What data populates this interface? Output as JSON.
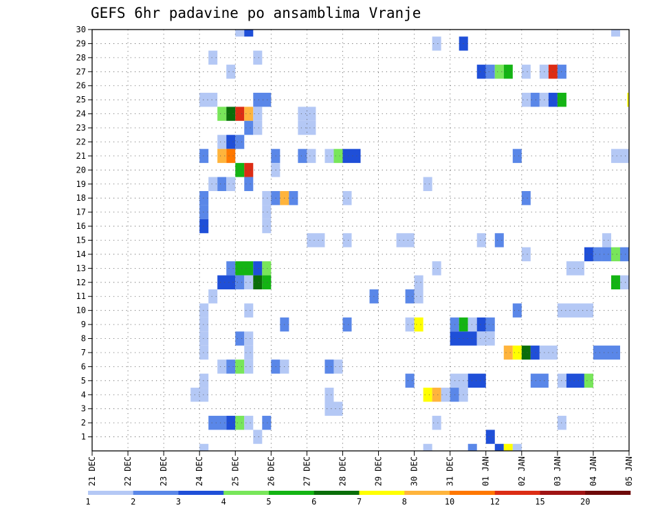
{
  "chart_data": {
    "type": "heatmap",
    "title": "GEFS 6hr padavine po ansamblima Vranje",
    "xlabel": "",
    "ylabel": "",
    "x_tick_labels": [
      "21 DEC",
      "22 DEC",
      "23 DEC",
      "24 DEC",
      "25 DEC",
      "26 DEC",
      "27 DEC",
      "28 DEC",
      "29 DEC",
      "30 DEC",
      "31 DEC",
      "01 JAN",
      "02 JAN",
      "03 JAN",
      "04 JAN",
      "05 JAN"
    ],
    "y_tick_labels": [
      "1",
      "2",
      "3",
      "4",
      "5",
      "6",
      "7",
      "8",
      "9",
      "10",
      "11",
      "12",
      "13",
      "14",
      "15",
      "16",
      "17",
      "18",
      "19",
      "20",
      "21",
      "22",
      "23",
      "24",
      "25",
      "26",
      "27",
      "28",
      "29",
      "30"
    ],
    "x_axis": {
      "units": "days from 21 DEC 00Z",
      "range": [
        0,
        15
      ],
      "step_hours": 6
    },
    "y_axis": {
      "units": "ensemble member",
      "range": [
        0,
        30
      ]
    },
    "grid": true,
    "colorbar": {
      "labels": [
        "1",
        "2",
        "3",
        "4",
        "5",
        "6",
        "7",
        "8",
        "10",
        "12",
        "15",
        "20"
      ],
      "colors": [
        "#b4c8f5",
        "#5a87e8",
        "#1f4fd8",
        "#78e65a",
        "#14b414",
        "#0a6e0a",
        "#ffff00",
        "#ffb43c",
        "#ff7800",
        "#dc2d14",
        "#a01414",
        "#6e0a0a"
      ]
    },
    "cell_note": "cells: [member, start_day, end_day, color_index]; color_index 0 = 1-2 mm, 1 = 2-3, 2 = 3-4, 3 = 4-5, 4 = 5-6, 5 = 6-7, 6 = 7-8, 7 = 8-10, 8 = 10-12, 9 = 12-15, 10 = 15-20, 11 = >20",
    "cells": [
      [
        30,
        4,
        4.25,
        0
      ],
      [
        30,
        4.25,
        4.5,
        2
      ],
      [
        30,
        14.5,
        14.75,
        0
      ],
      [
        29,
        9.5,
        9.75,
        0
      ],
      [
        29,
        10.25,
        10.5,
        2
      ],
      [
        28,
        3.25,
        3.5,
        0
      ],
      [
        28,
        4.5,
        4.75,
        0
      ],
      [
        27,
        3.75,
        4,
        0
      ],
      [
        27,
        10.75,
        11,
        2
      ],
      [
        27,
        11,
        11.25,
        1
      ],
      [
        27,
        11.25,
        11.5,
        3
      ],
      [
        27,
        11.5,
        11.75,
        4
      ],
      [
        27,
        12,
        12.25,
        0
      ],
      [
        27,
        12.5,
        12.75,
        0
      ],
      [
        27,
        12.75,
        13,
        9
      ],
      [
        27,
        13,
        13.25,
        1
      ],
      [
        25,
        3,
        3.5,
        0
      ],
      [
        25,
        4.5,
        5,
        1
      ],
      [
        25,
        12,
        12.25,
        0
      ],
      [
        25,
        12.25,
        12.5,
        1
      ],
      [
        25,
        12.5,
        12.75,
        0
      ],
      [
        25,
        12.75,
        13,
        2
      ],
      [
        25,
        13,
        13.25,
        4
      ],
      [
        25,
        14.95,
        15,
        6
      ],
      [
        24,
        3.5,
        3.75,
        3
      ],
      [
        24,
        3.75,
        4,
        5
      ],
      [
        24,
        4,
        4.25,
        9
      ],
      [
        24,
        4.25,
        4.5,
        7
      ],
      [
        24,
        4.5,
        4.75,
        0
      ],
      [
        24,
        5.75,
        6.25,
        0
      ],
      [
        23,
        4.25,
        4.5,
        1
      ],
      [
        23,
        4.5,
        4.75,
        0
      ],
      [
        23,
        5.75,
        6.25,
        0
      ],
      [
        22,
        3.5,
        3.75,
        0
      ],
      [
        22,
        3.75,
        4,
        2
      ],
      [
        22,
        4,
        4.25,
        1
      ],
      [
        21,
        3,
        3.25,
        1
      ],
      [
        21,
        3.5,
        3.75,
        7
      ],
      [
        21,
        3.75,
        4,
        8
      ],
      [
        21,
        5,
        5.25,
        1
      ],
      [
        21,
        5.75,
        6,
        1
      ],
      [
        21,
        6,
        6.25,
        0
      ],
      [
        21,
        6.5,
        6.75,
        0
      ],
      [
        21,
        6.75,
        7,
        3
      ],
      [
        21,
        7,
        7.5,
        2
      ],
      [
        21,
        11.75,
        12,
        1
      ],
      [
        21,
        14.5,
        15,
        0
      ],
      [
        20,
        4,
        4.25,
        4
      ],
      [
        20,
        4.25,
        4.5,
        9
      ],
      [
        20,
        5,
        5.25,
        0
      ],
      [
        19,
        3.25,
        3.5,
        0
      ],
      [
        19,
        3.5,
        3.75,
        1
      ],
      [
        19,
        3.75,
        4,
        0
      ],
      [
        19,
        4.25,
        4.5,
        1
      ],
      [
        19,
        9.25,
        9.5,
        0
      ],
      [
        18,
        3,
        3.25,
        1
      ],
      [
        18,
        4.75,
        5,
        0
      ],
      [
        18,
        5,
        5.25,
        1
      ],
      [
        18,
        5.25,
        5.5,
        7
      ],
      [
        18,
        5.5,
        5.75,
        1
      ],
      [
        18,
        7,
        7.25,
        0
      ],
      [
        18,
        12,
        12.25,
        1
      ],
      [
        17,
        3,
        3.25,
        1
      ],
      [
        17,
        4.75,
        5,
        0
      ],
      [
        16,
        3,
        3.25,
        2
      ],
      [
        16,
        4.75,
        5,
        0
      ],
      [
        15,
        6,
        6.5,
        0
      ],
      [
        15,
        7,
        7.25,
        0
      ],
      [
        15,
        8.5,
        9,
        0
      ],
      [
        15,
        10.75,
        11,
        0
      ],
      [
        15,
        11.25,
        11.5,
        1
      ],
      [
        15,
        14.25,
        14.5,
        0
      ],
      [
        14,
        12,
        12.25,
        0
      ],
      [
        14,
        13.75,
        14,
        2
      ],
      [
        14,
        14,
        14.25,
        1
      ],
      [
        14,
        14.25,
        14.5,
        1
      ],
      [
        14,
        14.5,
        14.75,
        3
      ],
      [
        14,
        14.75,
        15,
        1
      ],
      [
        13,
        3.75,
        4,
        1
      ],
      [
        13,
        4,
        4.5,
        4
      ],
      [
        13,
        4.5,
        4.75,
        2
      ],
      [
        13,
        4.75,
        5,
        3
      ],
      [
        13,
        9.5,
        9.75,
        0
      ],
      [
        13,
        13.25,
        13.75,
        0
      ],
      [
        12,
        3.5,
        4,
        2
      ],
      [
        12,
        4,
        4.25,
        1
      ],
      [
        12,
        4.25,
        4.5,
        0
      ],
      [
        12,
        4.5,
        4.75,
        5
      ],
      [
        12,
        4.75,
        5,
        4
      ],
      [
        12,
        9,
        9.25,
        0
      ],
      [
        12,
        14.5,
        14.75,
        4
      ],
      [
        12,
        14.75,
        15,
        0
      ],
      [
        11,
        3.25,
        3.5,
        0
      ],
      [
        11,
        7.75,
        8,
        1
      ],
      [
        11,
        8.75,
        9,
        1
      ],
      [
        11,
        9,
        9.25,
        0
      ],
      [
        10,
        3,
        3.25,
        0
      ],
      [
        10,
        4.25,
        4.5,
        0
      ],
      [
        10,
        11.75,
        12,
        1
      ],
      [
        10,
        13,
        14,
        0
      ],
      [
        9,
        3,
        3.25,
        0
      ],
      [
        9,
        5.25,
        5.5,
        1
      ],
      [
        9,
        7,
        7.25,
        1
      ],
      [
        9,
        8.75,
        9,
        0
      ],
      [
        9,
        9,
        9.25,
        6
      ],
      [
        9,
        10,
        10.25,
        1
      ],
      [
        9,
        10.25,
        10.5,
        4
      ],
      [
        9,
        10.5,
        10.75,
        0
      ],
      [
        9,
        10.75,
        11,
        2
      ],
      [
        9,
        11,
        11.25,
        1
      ],
      [
        8,
        3,
        3.25,
        0
      ],
      [
        8,
        4,
        4.25,
        1
      ],
      [
        8,
        4.25,
        4.5,
        0
      ],
      [
        8,
        10,
        10.75,
        2
      ],
      [
        8,
        10.75,
        11.25,
        0
      ],
      [
        7,
        3,
        3.25,
        0
      ],
      [
        7,
        4.25,
        4.5,
        0
      ],
      [
        7,
        11.5,
        11.75,
        7
      ],
      [
        7,
        11.75,
        12,
        6
      ],
      [
        7,
        12,
        12.25,
        5
      ],
      [
        7,
        12.25,
        12.5,
        2
      ],
      [
        7,
        12.5,
        13,
        0
      ],
      [
        7,
        14,
        14.75,
        1
      ],
      [
        6,
        3.5,
        3.75,
        0
      ],
      [
        6,
        3.75,
        4,
        1
      ],
      [
        6,
        4,
        4.25,
        3
      ],
      [
        6,
        4.25,
        4.5,
        0
      ],
      [
        6,
        5,
        5.25,
        1
      ],
      [
        6,
        5.25,
        5.5,
        0
      ],
      [
        6,
        6.5,
        6.75,
        1
      ],
      [
        6,
        6.75,
        7,
        0
      ],
      [
        5,
        3,
        3.25,
        0
      ],
      [
        5,
        8.75,
        9,
        1
      ],
      [
        5,
        10,
        10.5,
        0
      ],
      [
        5,
        10.5,
        11,
        2
      ],
      [
        5,
        12.25,
        12.75,
        1
      ],
      [
        5,
        13,
        13.25,
        0
      ],
      [
        5,
        13.25,
        13.75,
        2
      ],
      [
        5,
        13.75,
        14,
        3
      ],
      [
        4,
        2.75,
        3.25,
        0
      ],
      [
        4,
        6.5,
        6.75,
        0
      ],
      [
        4,
        9.25,
        9.5,
        6
      ],
      [
        4,
        9.5,
        9.75,
        7
      ],
      [
        4,
        9.75,
        10,
        0
      ],
      [
        4,
        10,
        10.25,
        1
      ],
      [
        4,
        10.25,
        10.5,
        0
      ],
      [
        3,
        6.5,
        7,
        0
      ],
      [
        2,
        3.25,
        3.75,
        1
      ],
      [
        2,
        3.75,
        4,
        2
      ],
      [
        2,
        4,
        4.25,
        3
      ],
      [
        2,
        4.25,
        4.5,
        0
      ],
      [
        2,
        4.75,
        5,
        1
      ],
      [
        2,
        9.5,
        9.75,
        0
      ],
      [
        2,
        13,
        13.25,
        0
      ],
      [
        1,
        4.5,
        4.75,
        0
      ],
      [
        1,
        11,
        11.25,
        2
      ],
      [
        0,
        3,
        3.25,
        0
      ],
      [
        0,
        9.25,
        9.5,
        0
      ],
      [
        0,
        10.5,
        10.75,
        1
      ],
      [
        0,
        11.25,
        11.5,
        2
      ],
      [
        0,
        11.5,
        11.75,
        6
      ],
      [
        0,
        11.75,
        12,
        0
      ]
    ]
  }
}
